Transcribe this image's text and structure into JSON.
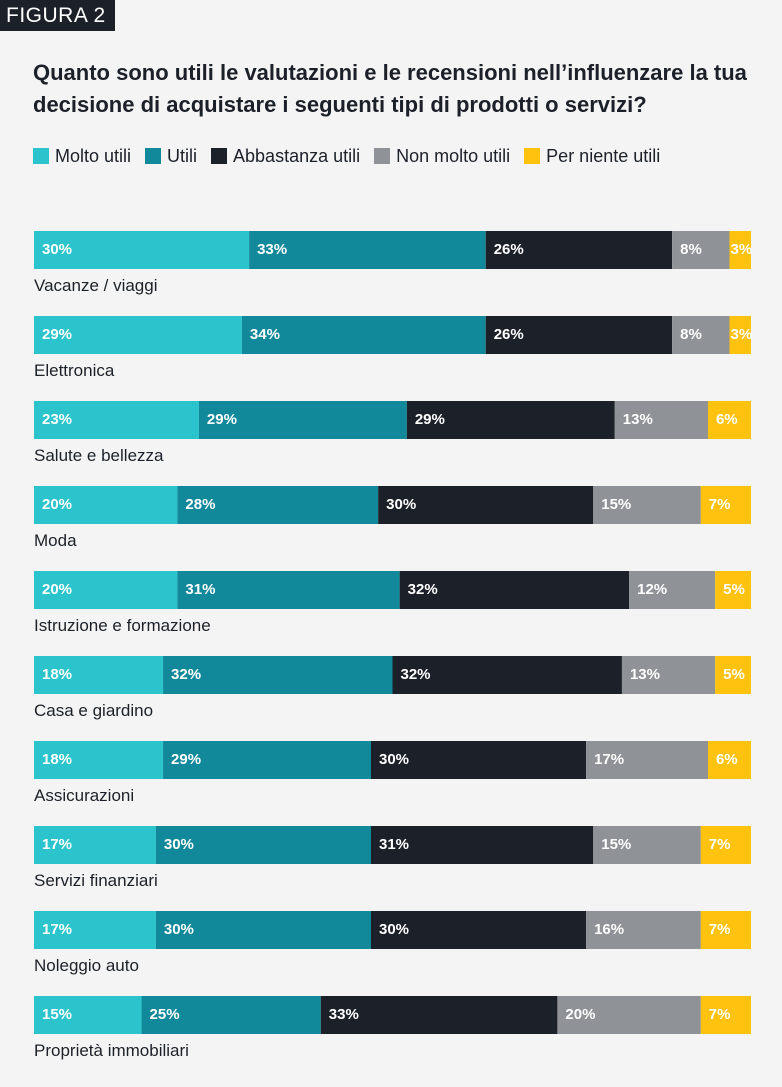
{
  "figure_tag": "FIGURA 2",
  "chart_data": {
    "type": "bar",
    "orientation": "horizontal",
    "stacked": true,
    "title": "Quanto sono utili le valutazioni e le recensioni nell’influenzare la tua decisione di acquistare i seguenti tipi di prodotti o servizi?",
    "legend_position": "top-left",
    "unit": "%",
    "categories": [
      "Vacanze / viaggi",
      "Elettronica",
      "Salute e bellezza",
      "Moda",
      "Istruzione e formazione",
      "Casa e giardino",
      "Assicurazioni",
      "Servizi finanziari",
      "Noleggio auto",
      "Proprietà immobiliari"
    ],
    "series": [
      {
        "name": "Molto utili",
        "color": "#2bc4cc",
        "label_color": "#ffffff",
        "values": [
          30,
          29,
          23,
          20,
          20,
          18,
          18,
          17,
          17,
          15
        ]
      },
      {
        "name": "Utili",
        "color": "#12899a",
        "label_color": "#ffffff",
        "values": [
          33,
          34,
          29,
          28,
          31,
          32,
          29,
          30,
          30,
          25
        ]
      },
      {
        "name": "Abbastanza utili",
        "color": "#1c2129",
        "label_color": "#ffffff",
        "values": [
          26,
          26,
          29,
          30,
          32,
          32,
          30,
          31,
          30,
          33
        ]
      },
      {
        "name": "Non molto utili",
        "color": "#8f9296",
        "label_color": "#ffffff",
        "values": [
          8,
          8,
          13,
          15,
          12,
          13,
          17,
          15,
          16,
          20
        ]
      },
      {
        "name": "Per niente utili",
        "color": "#ffc20e",
        "label_color": "#ffffff",
        "values": [
          3,
          3,
          6,
          7,
          5,
          5,
          6,
          7,
          7,
          7
        ]
      }
    ]
  }
}
